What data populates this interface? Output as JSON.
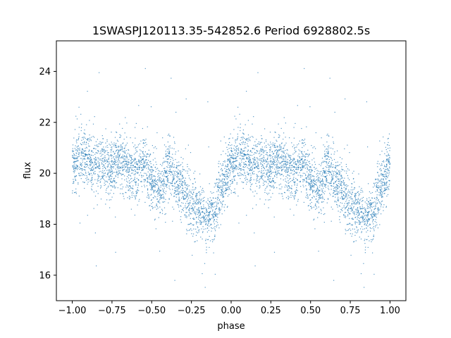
{
  "chart_data": {
    "type": "scatter",
    "title": "1SWASPJ120113.35-542852.6 Period 6928802.5s",
    "xlabel": "phase",
    "ylabel": "flux",
    "xlim": [
      -1.1,
      1.1
    ],
    "ylim": [
      15.0,
      25.2
    ],
    "xticks": [
      -1.0,
      -0.75,
      -0.5,
      -0.25,
      0.0,
      0.25,
      0.5,
      0.75,
      1.0
    ],
    "xtick_labels": [
      "−1.00",
      "−0.75",
      "−0.50",
      "−0.25",
      "0.00",
      "0.25",
      "0.50",
      "0.75",
      "1.00"
    ],
    "yticks": [
      16,
      18,
      20,
      22,
      24
    ],
    "ytick_labels": [
      "16",
      "18",
      "20",
      "22",
      "24"
    ],
    "grid": false,
    "marker_color": "#1f77b4",
    "series": [
      {
        "phase_profile": {
          "x": [
            0.0,
            0.03,
            0.08,
            0.13,
            0.2,
            0.25,
            0.3,
            0.33,
            0.36,
            0.4,
            0.45,
            0.5,
            0.55,
            0.6,
            0.65,
            0.7,
            0.75,
            0.8,
            0.85,
            0.9,
            0.95,
            1.0
          ],
          "y": [
            20.3,
            20.5,
            20.6,
            20.3,
            20.4,
            20.1,
            20.5,
            20.4,
            20.0,
            20.1,
            20.4,
            19.8,
            19.2,
            20.2,
            19.8,
            19.2,
            18.9,
            18.6,
            18.1,
            18.7,
            19.5,
            20.3
          ]
        }
      }
    ]
  }
}
